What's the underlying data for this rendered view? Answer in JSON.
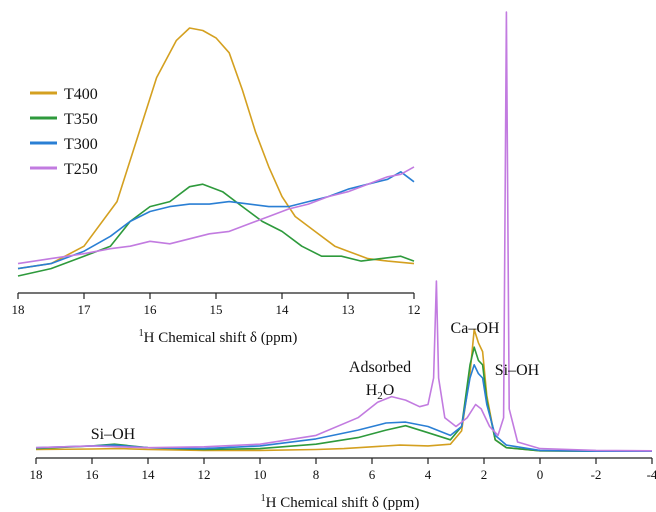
{
  "chart_data": [
    {
      "panel": "main",
      "type": "line",
      "xlabel_sup": "1",
      "xlabel": "H Chemical shift δ (ppm)",
      "ylabel": "",
      "xlim": [
        18,
        -4
      ],
      "x_reversed": true,
      "x_ticks": [
        "18",
        "16",
        "14",
        "12",
        "10",
        "8",
        "6",
        "4",
        "2",
        "0",
        "-2",
        "-4"
      ],
      "series": [
        {
          "name": "T400",
          "color": "#d4a020",
          "points": [
            [
              18,
              0.008
            ],
            [
              16,
              0.009
            ],
            [
              15,
              0.01
            ],
            [
              14,
              0.008
            ],
            [
              12,
              0.006
            ],
            [
              10,
              0.006
            ],
            [
              8,
              0.008
            ],
            [
              7,
              0.01
            ],
            [
              6,
              0.014
            ],
            [
              5,
              0.018
            ],
            [
              4,
              0.016
            ],
            [
              3.2,
              0.02
            ],
            [
              2.8,
              0.05
            ],
            [
              2.5,
              0.18
            ],
            [
              2.35,
              0.28
            ],
            [
              2.2,
              0.25
            ],
            [
              2.05,
              0.23
            ],
            [
              1.9,
              0.13
            ],
            [
              1.6,
              0.03
            ],
            [
              1.2,
              0.012
            ],
            [
              0,
              0.005
            ],
            [
              -2,
              0.004
            ],
            [
              -4,
              0.004
            ]
          ]
        },
        {
          "name": "T350",
          "color": "#2e9a3c",
          "points": [
            [
              18,
              0.01
            ],
            [
              16,
              0.016
            ],
            [
              15.2,
              0.02
            ],
            [
              14,
              0.012
            ],
            [
              12,
              0.008
            ],
            [
              10,
              0.01
            ],
            [
              8,
              0.02
            ],
            [
              6.5,
              0.035
            ],
            [
              5.5,
              0.052
            ],
            [
              4.8,
              0.062
            ],
            [
              4,
              0.046
            ],
            [
              3.2,
              0.03
            ],
            [
              2.8,
              0.06
            ],
            [
              2.5,
              0.2
            ],
            [
              2.35,
              0.24
            ],
            [
              2.2,
              0.21
            ],
            [
              2.05,
              0.2
            ],
            [
              1.9,
              0.12
            ],
            [
              1.6,
              0.03
            ],
            [
              1.2,
              0.012
            ],
            [
              0,
              0.005
            ],
            [
              -2,
              0.004
            ],
            [
              -4,
              0.004
            ]
          ]
        },
        {
          "name": "T300",
          "color": "#2a7fd4",
          "points": [
            [
              18,
              0.012
            ],
            [
              16,
              0.016
            ],
            [
              15.2,
              0.018
            ],
            [
              14,
              0.012
            ],
            [
              12,
              0.01
            ],
            [
              10,
              0.016
            ],
            [
              8,
              0.032
            ],
            [
              6.5,
              0.052
            ],
            [
              5.5,
              0.068
            ],
            [
              4.8,
              0.07
            ],
            [
              4,
              0.06
            ],
            [
              3.2,
              0.04
            ],
            [
              2.8,
              0.06
            ],
            [
              2.5,
              0.17
            ],
            [
              2.35,
              0.2
            ],
            [
              2.2,
              0.18
            ],
            [
              2.05,
              0.17
            ],
            [
              1.9,
              0.11
            ],
            [
              1.6,
              0.04
            ],
            [
              1.2,
              0.018
            ],
            [
              0,
              0.006
            ],
            [
              -2,
              0.004
            ],
            [
              -4,
              0.004
            ]
          ]
        },
        {
          "name": "T250",
          "color": "#c27be0",
          "points": [
            [
              18,
              0.012
            ],
            [
              16,
              0.016
            ],
            [
              14,
              0.012
            ],
            [
              12,
              0.014
            ],
            [
              10,
              0.02
            ],
            [
              8,
              0.04
            ],
            [
              6.5,
              0.08
            ],
            [
              5.8,
              0.115
            ],
            [
              5.3,
              0.128
            ],
            [
              4.8,
              0.12
            ],
            [
              4.3,
              0.105
            ],
            [
              4.0,
              0.11
            ],
            [
              3.8,
              0.17
            ],
            [
              3.7,
              0.39
            ],
            [
              3.62,
              0.17
            ],
            [
              3.4,
              0.08
            ],
            [
              3.0,
              0.06
            ],
            [
              2.6,
              0.08
            ],
            [
              2.3,
              0.11
            ],
            [
              2.1,
              0.1
            ],
            [
              1.8,
              0.06
            ],
            [
              1.5,
              0.04
            ],
            [
              1.3,
              0.08
            ],
            [
              1.2,
              1.0
            ],
            [
              1.1,
              0.1
            ],
            [
              0.8,
              0.025
            ],
            [
              0,
              0.01
            ],
            [
              -2,
              0.006
            ],
            [
              -4,
              0.005
            ]
          ]
        }
      ],
      "annotations": [
        {
          "text": "Adsorbed"
        },
        {
          "text": "H",
          "sub": "2",
          "tail": "O"
        },
        {
          "text": "Ca–OH"
        },
        {
          "text": "Si–OH"
        },
        {
          "text": "Si–OH"
        }
      ]
    },
    {
      "panel": "inset",
      "type": "line",
      "xlabel_sup": "1",
      "xlabel": "H Chemical shift δ (ppm)",
      "xlim": [
        18,
        12
      ],
      "x_reversed": true,
      "x_ticks": [
        "18",
        "17",
        "16",
        "15",
        "14",
        "13",
        "12"
      ],
      "legend_placement": "top-left",
      "series": [
        {
          "name": "T400",
          "color": "#d4a020",
          "points": [
            [
              18,
              0.03
            ],
            [
              17.5,
              0.05
            ],
            [
              17.0,
              0.12
            ],
            [
              16.5,
              0.3
            ],
            [
              16.2,
              0.55
            ],
            [
              15.9,
              0.8
            ],
            [
              15.6,
              0.95
            ],
            [
              15.4,
              1.0
            ],
            [
              15.2,
              0.99
            ],
            [
              15.0,
              0.96
            ],
            [
              14.8,
              0.9
            ],
            [
              14.6,
              0.75
            ],
            [
              14.4,
              0.58
            ],
            [
              14.2,
              0.44
            ],
            [
              14.0,
              0.32
            ],
            [
              13.8,
              0.24
            ],
            [
              13.5,
              0.18
            ],
            [
              13.2,
              0.12
            ],
            [
              13.0,
              0.1
            ],
            [
              12.7,
              0.07
            ],
            [
              12.4,
              0.06
            ],
            [
              12.0,
              0.05
            ]
          ]
        },
        {
          "name": "T350",
          "color": "#2e9a3c",
          "points": [
            [
              18,
              0.0
            ],
            [
              17.5,
              0.03
            ],
            [
              17.0,
              0.08
            ],
            [
              16.6,
              0.12
            ],
            [
              16.3,
              0.22
            ],
            [
              16.0,
              0.28
            ],
            [
              15.7,
              0.3
            ],
            [
              15.4,
              0.36
            ],
            [
              15.2,
              0.37
            ],
            [
              14.9,
              0.34
            ],
            [
              14.6,
              0.28
            ],
            [
              14.3,
              0.22
            ],
            [
              14.0,
              0.18
            ],
            [
              13.7,
              0.12
            ],
            [
              13.4,
              0.08
            ],
            [
              13.1,
              0.08
            ],
            [
              12.8,
              0.06
            ],
            [
              12.5,
              0.07
            ],
            [
              12.2,
              0.08
            ],
            [
              12.0,
              0.06
            ]
          ]
        },
        {
          "name": "T300",
          "color": "#2a7fd4",
          "points": [
            [
              18,
              0.03
            ],
            [
              17.5,
              0.05
            ],
            [
              17.0,
              0.1
            ],
            [
              16.6,
              0.16
            ],
            [
              16.3,
              0.22
            ],
            [
              16.0,
              0.26
            ],
            [
              15.7,
              0.28
            ],
            [
              15.4,
              0.29
            ],
            [
              15.1,
              0.29
            ],
            [
              14.8,
              0.3
            ],
            [
              14.5,
              0.29
            ],
            [
              14.2,
              0.28
            ],
            [
              13.9,
              0.28
            ],
            [
              13.6,
              0.3
            ],
            [
              13.3,
              0.32
            ],
            [
              13.0,
              0.35
            ],
            [
              12.7,
              0.37
            ],
            [
              12.4,
              0.39
            ],
            [
              12.2,
              0.42
            ],
            [
              12.0,
              0.38
            ]
          ]
        },
        {
          "name": "T250",
          "color": "#c27be0",
          "points": [
            [
              18,
              0.05
            ],
            [
              17.5,
              0.07
            ],
            [
              17.0,
              0.09
            ],
            [
              16.6,
              0.11
            ],
            [
              16.3,
              0.12
            ],
            [
              16.0,
              0.14
            ],
            [
              15.7,
              0.13
            ],
            [
              15.4,
              0.15
            ],
            [
              15.1,
              0.17
            ],
            [
              14.8,
              0.18
            ],
            [
              14.5,
              0.21
            ],
            [
              14.2,
              0.24
            ],
            [
              13.9,
              0.27
            ],
            [
              13.6,
              0.29
            ],
            [
              13.3,
              0.32
            ],
            [
              13.0,
              0.34
            ],
            [
              12.7,
              0.37
            ],
            [
              12.4,
              0.4
            ],
            [
              12.2,
              0.41
            ],
            [
              12.0,
              0.44
            ]
          ]
        }
      ]
    }
  ]
}
